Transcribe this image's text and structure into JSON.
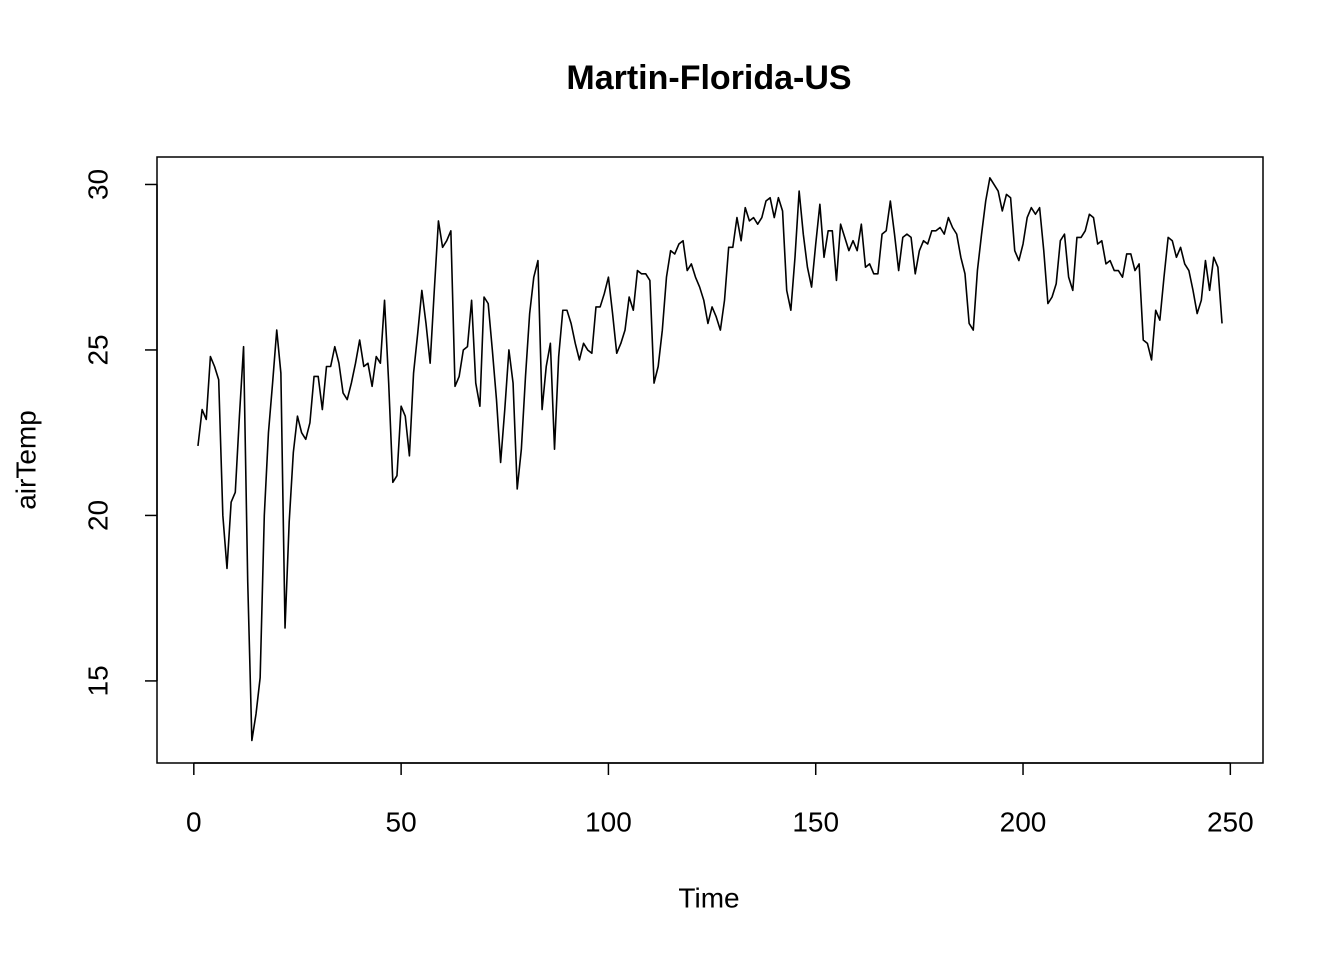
{
  "chart_data": {
    "type": "line",
    "title": "Martin-Florida-US",
    "x_label": "Time",
    "y_label": "airTemp",
    "color": "#000000",
    "x": [
      1,
      2,
      3,
      4,
      5,
      6,
      7,
      8,
      9,
      10,
      11,
      12,
      13,
      14,
      15,
      16,
      17,
      18,
      19,
      20,
      21,
      22,
      23,
      24,
      25,
      26,
      27,
      28,
      29,
      30,
      31,
      32,
      33,
      34,
      35,
      36,
      37,
      38,
      39,
      40,
      41,
      42,
      43,
      44,
      45,
      46,
      47,
      48,
      49,
      50,
      51,
      52,
      53,
      54,
      55,
      56,
      57,
      58,
      59,
      60,
      61,
      62,
      63,
      64,
      65,
      66,
      67,
      68,
      69,
      70,
      71,
      72,
      73,
      74,
      75,
      76,
      77,
      78,
      79,
      80,
      81,
      82,
      83,
      84,
      85,
      86,
      87,
      88,
      89,
      90,
      91,
      92,
      93,
      94,
      95,
      96,
      97,
      98,
      99,
      100,
      101,
      102,
      103,
      104,
      105,
      106,
      107,
      108,
      109,
      110,
      111,
      112,
      113,
      114,
      115,
      116,
      117,
      118,
      119,
      120,
      121,
      122,
      123,
      124,
      125,
      126,
      127,
      128,
      129,
      130,
      131,
      132,
      133,
      134,
      135,
      136,
      137,
      138,
      139,
      140,
      141,
      142,
      143,
      144,
      145,
      146,
      147,
      148,
      149,
      150,
      151,
      152,
      153,
      154,
      155,
      156,
      157,
      158,
      159,
      160,
      161,
      162,
      163,
      164,
      165,
      166,
      167,
      168,
      169,
      170,
      171,
      172,
      173,
      174,
      175,
      176,
      177,
      178,
      179,
      180,
      181,
      182,
      183,
      184,
      185,
      186,
      187,
      188,
      189,
      190,
      191,
      192,
      193,
      194,
      195,
      196,
      197,
      198,
      199,
      200,
      201,
      202,
      203,
      204,
      205,
      206,
      207,
      208,
      209,
      210,
      211,
      212,
      213,
      214,
      215,
      216,
      217,
      218,
      219,
      220,
      221,
      222,
      223,
      224,
      225,
      226,
      227,
      228,
      229,
      230,
      231,
      232,
      233,
      234,
      235,
      236,
      237,
      238,
      239,
      240,
      241,
      242,
      243,
      244,
      245,
      246,
      247,
      248
    ],
    "values": [
      22.1,
      23.2,
      22.9,
      24.8,
      24.5,
      24.1,
      20.0,
      18.4,
      20.4,
      20.7,
      23.0,
      25.1,
      18.0,
      13.2,
      14.0,
      15.1,
      20.0,
      22.5,
      24.0,
      25.6,
      24.3,
      16.6,
      19.8,
      21.9,
      23.0,
      22.5,
      22.3,
      22.8,
      24.2,
      24.2,
      23.2,
      24.5,
      24.5,
      25.1,
      24.6,
      23.7,
      23.5,
      24.0,
      24.6,
      25.3,
      24.5,
      24.6,
      23.9,
      24.8,
      24.6,
      26.5,
      24.0,
      21.0,
      21.2,
      23.3,
      23.0,
      21.8,
      24.3,
      25.5,
      26.8,
      25.8,
      24.6,
      26.8,
      28.9,
      28.1,
      28.3,
      28.6,
      23.9,
      24.2,
      25.0,
      25.1,
      26.5,
      24.0,
      23.3,
      26.6,
      26.4,
      25.0,
      23.5,
      21.6,
      23.2,
      25.0,
      24.0,
      20.8,
      22.0,
      24.2,
      26.1,
      27.2,
      27.7,
      23.2,
      24.5,
      25.2,
      22.0,
      24.8,
      26.2,
      26.2,
      25.8,
      25.2,
      24.7,
      25.2,
      25.0,
      24.9,
      26.3,
      26.3,
      26.7,
      27.2,
      26.1,
      24.9,
      25.2,
      25.6,
      26.6,
      26.2,
      27.4,
      27.3,
      27.3,
      27.1,
      24.0,
      24.5,
      25.6,
      27.2,
      28.0,
      27.9,
      28.2,
      28.3,
      27.4,
      27.6,
      27.2,
      26.9,
      26.5,
      25.8,
      26.3,
      26.0,
      25.6,
      26.5,
      28.1,
      28.1,
      29.0,
      28.3,
      29.3,
      28.9,
      29.0,
      28.8,
      29.0,
      29.5,
      29.6,
      29.0,
      29.6,
      29.2,
      26.8,
      26.2,
      27.8,
      29.8,
      28.5,
      27.5,
      26.9,
      28.2,
      29.4,
      27.8,
      28.6,
      28.6,
      27.1,
      28.8,
      28.4,
      28.0,
      28.3,
      28.0,
      28.8,
      27.5,
      27.6,
      27.3,
      27.3,
      28.5,
      28.6,
      29.5,
      28.5,
      27.4,
      28.4,
      28.5,
      28.4,
      27.3,
      28.0,
      28.3,
      28.2,
      28.6,
      28.6,
      28.7,
      28.5,
      29.0,
      28.7,
      28.5,
      27.8,
      27.3,
      25.8,
      25.6,
      27.4,
      28.5,
      29.5,
      30.2,
      30.0,
      29.8,
      29.2,
      29.7,
      29.6,
      28.0,
      27.7,
      28.2,
      29.0,
      29.3,
      29.1,
      29.3,
      28.0,
      26.4,
      26.6,
      27.0,
      28.3,
      28.5,
      27.2,
      26.8,
      28.4,
      28.4,
      28.6,
      29.1,
      29.0,
      28.2,
      28.3,
      27.6,
      27.7,
      27.4,
      27.4,
      27.2,
      27.9,
      27.9,
      27.4,
      27.6,
      25.3,
      25.2,
      24.7,
      26.2,
      25.9,
      27.2,
      28.4,
      28.3,
      27.8,
      28.1,
      27.6,
      27.4,
      26.8,
      26.1,
      26.5,
      27.7,
      26.8,
      27.8,
      27.5,
      25.8
    ],
    "xlim": [
      -8.88,
      257.88
    ],
    "ylim": [
      12.52,
      30.83
    ],
    "xticks": [
      0,
      50,
      100,
      150,
      200,
      250
    ],
    "yticks": [
      15,
      20,
      25,
      30
    ],
    "grid": false
  }
}
